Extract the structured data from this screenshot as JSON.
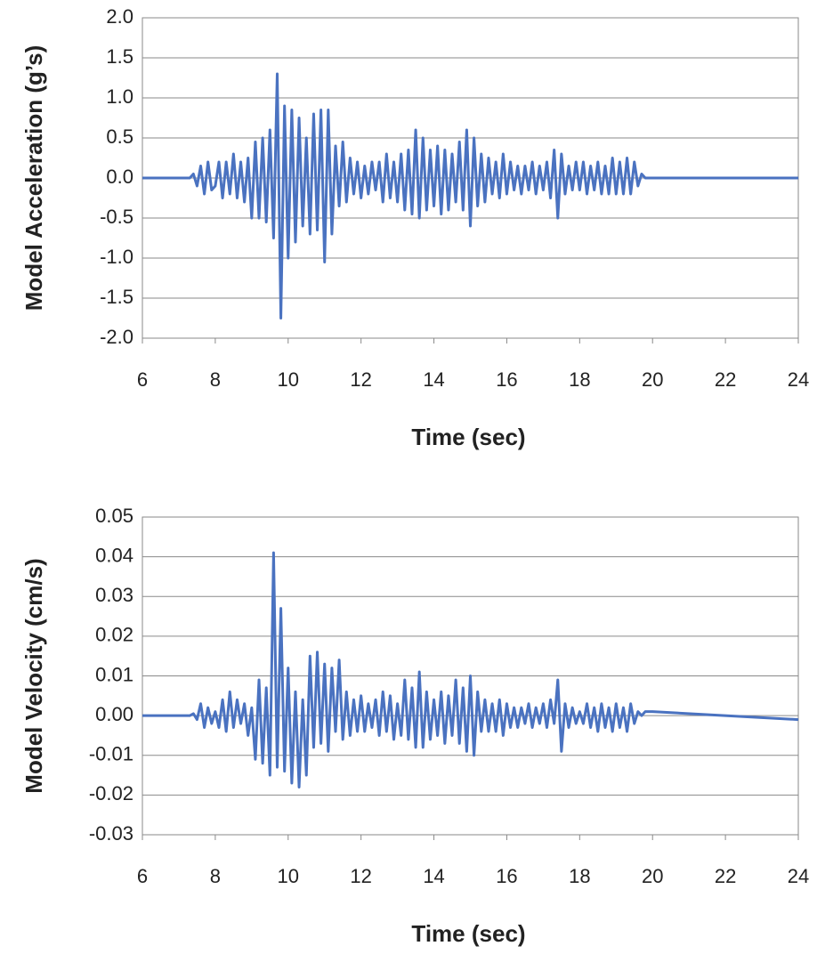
{
  "chart_data": [
    {
      "type": "line",
      "y_label": "Model Acceleration (g’s)",
      "x_label": "Time (sec)",
      "color": "#4a72c0",
      "grid": true,
      "xlim": [
        6,
        24
      ],
      "xticks": [
        6,
        8,
        10,
        12,
        14,
        16,
        18,
        20,
        22,
        24
      ],
      "ylim": [
        -2,
        2
      ],
      "yticks": [
        {
          "value": 2,
          "label": "2.0"
        },
        1.5,
        {
          "value": 1,
          "label": "1.0"
        },
        0.5,
        {
          "value": 0,
          "label": "0.0"
        },
        -0.5,
        {
          "value": -1,
          "label": "-1.0"
        },
        -1.5,
        {
          "value": -2,
          "label": "-2.0"
        }
      ],
      "x": [
        6,
        7,
        7.3,
        7.4,
        7.5,
        7.6,
        7.7,
        7.8,
        7.9,
        8,
        8.1,
        8.2,
        8.3,
        8.4,
        8.5,
        8.6,
        8.7,
        8.8,
        8.9,
        9,
        9.1,
        9.2,
        9.3,
        9.4,
        9.5,
        9.6,
        9.7,
        9.8,
        9.9,
        10,
        10.1,
        10.2,
        10.3,
        10.4,
        10.5,
        10.6,
        10.7,
        10.8,
        10.9,
        11,
        11.1,
        11.2,
        11.3,
        11.4,
        11.5,
        11.6,
        11.7,
        11.8,
        11.9,
        12,
        12.1,
        12.2,
        12.3,
        12.4,
        12.5,
        12.6,
        12.7,
        12.8,
        12.9,
        13,
        13.1,
        13.2,
        13.3,
        13.4,
        13.5,
        13.6,
        13.7,
        13.8,
        13.9,
        14,
        14.1,
        14.2,
        14.3,
        14.4,
        14.5,
        14.6,
        14.7,
        14.8,
        14.9,
        15,
        15.1,
        15.2,
        15.3,
        15.4,
        15.5,
        15.6,
        15.7,
        15.8,
        15.9,
        16,
        16.1,
        16.2,
        16.3,
        16.4,
        16.5,
        16.6,
        16.7,
        16.8,
        16.9,
        17,
        17.1,
        17.2,
        17.3,
        17.4,
        17.5,
        17.6,
        17.7,
        17.8,
        17.9,
        18,
        18.1,
        18.2,
        18.3,
        18.4,
        18.5,
        18.6,
        18.7,
        18.8,
        18.9,
        19,
        19.1,
        19.2,
        19.3,
        19.4,
        19.5,
        19.6,
        19.7,
        19.8,
        20,
        24
      ],
      "values": [
        0,
        0,
        0,
        0.05,
        -0.1,
        0.15,
        -0.2,
        0.2,
        -0.15,
        -0.1,
        0.2,
        -0.25,
        0.2,
        -0.2,
        0.3,
        -0.25,
        0.2,
        -0.3,
        0.25,
        -0.5,
        0.45,
        -0.5,
        0.5,
        -0.55,
        0.6,
        -0.75,
        1.3,
        -1.75,
        0.9,
        -1.0,
        0.85,
        -0.8,
        0.75,
        -0.6,
        0.5,
        -0.7,
        0.8,
        -0.65,
        0.85,
        -1.05,
        0.85,
        -0.7,
        0.4,
        -0.35,
        0.45,
        -0.3,
        0.25,
        -0.2,
        0.2,
        -0.25,
        0.15,
        -0.2,
        0.2,
        -0.15,
        0.2,
        -0.3,
        0.3,
        -0.25,
        0.2,
        -0.3,
        0.3,
        -0.4,
        0.35,
        -0.45,
        0.6,
        -0.5,
        0.5,
        -0.4,
        0.35,
        -0.35,
        0.4,
        -0.45,
        0.35,
        -0.4,
        0.3,
        -0.3,
        0.45,
        -0.4,
        0.6,
        -0.6,
        0.5,
        -0.35,
        0.3,
        -0.3,
        0.25,
        -0.2,
        0.2,
        -0.25,
        0.3,
        -0.2,
        0.2,
        -0.15,
        0.15,
        -0.2,
        0.15,
        -0.15,
        0.2,
        -0.2,
        0.15,
        -0.15,
        0.2,
        -0.25,
        0.35,
        -0.5,
        0.3,
        -0.2,
        0.15,
        -0.15,
        0.2,
        -0.15,
        0.2,
        -0.2,
        0.15,
        -0.15,
        0.2,
        -0.2,
        0.15,
        -0.2,
        0.25,
        -0.2,
        0.2,
        -0.2,
        0.25,
        -0.2,
        0.2,
        -0.1,
        0.05,
        0,
        0,
        0
      ]
    },
    {
      "type": "line",
      "y_label": "Model Velocity (cm/s)",
      "x_label": "Time (sec)",
      "color": "#4a72c0",
      "grid": true,
      "xlim": [
        6,
        24
      ],
      "xticks": [
        6,
        8,
        10,
        12,
        14,
        16,
        18,
        20,
        22,
        24
      ],
      "ylim": [
        -0.03,
        0.05
      ],
      "yticks": [
        0.05,
        0.04,
        0.03,
        0.02,
        0.01,
        {
          "value": 0,
          "label": "0.00"
        },
        -0.01,
        -0.02,
        -0.03
      ],
      "x": [
        6,
        7,
        7.3,
        7.4,
        7.5,
        7.6,
        7.7,
        7.8,
        7.9,
        8,
        8.1,
        8.2,
        8.3,
        8.4,
        8.5,
        8.6,
        8.7,
        8.8,
        8.9,
        9,
        9.1,
        9.2,
        9.3,
        9.4,
        9.5,
        9.6,
        9.7,
        9.8,
        9.9,
        10,
        10.1,
        10.2,
        10.3,
        10.4,
        10.5,
        10.6,
        10.7,
        10.8,
        10.9,
        11,
        11.1,
        11.2,
        11.3,
        11.4,
        11.5,
        11.6,
        11.7,
        11.8,
        11.9,
        12,
        12.1,
        12.2,
        12.3,
        12.4,
        12.5,
        12.6,
        12.7,
        12.8,
        12.9,
        13,
        13.1,
        13.2,
        13.3,
        13.4,
        13.5,
        13.6,
        13.7,
        13.8,
        13.9,
        14,
        14.1,
        14.2,
        14.3,
        14.4,
        14.5,
        14.6,
        14.7,
        14.8,
        14.9,
        15,
        15.1,
        15.2,
        15.3,
        15.4,
        15.5,
        15.6,
        15.7,
        15.8,
        15.9,
        16,
        16.1,
        16.2,
        16.3,
        16.4,
        16.5,
        16.6,
        16.7,
        16.8,
        16.9,
        17,
        17.1,
        17.2,
        17.3,
        17.4,
        17.5,
        17.6,
        17.7,
        17.8,
        17.9,
        18,
        18.1,
        18.2,
        18.3,
        18.4,
        18.5,
        18.6,
        18.7,
        18.8,
        18.9,
        19,
        19.1,
        19.2,
        19.3,
        19.4,
        19.5,
        19.6,
        19.7,
        19.8,
        20,
        24
      ],
      "values": [
        0,
        0,
        0,
        0.0005,
        -0.001,
        0.003,
        -0.003,
        0.002,
        -0.002,
        0.001,
        -0.003,
        0.004,
        -0.004,
        0.006,
        -0.003,
        0.004,
        -0.002,
        0.003,
        -0.005,
        0.002,
        -0.011,
        0.009,
        -0.012,
        0.007,
        -0.015,
        0.041,
        -0.013,
        0.027,
        -0.014,
        0.012,
        -0.017,
        0.006,
        -0.018,
        0.004,
        -0.015,
        0.015,
        -0.008,
        0.016,
        -0.007,
        0.013,
        -0.009,
        0.012,
        -0.004,
        0.014,
        -0.006,
        0.006,
        -0.005,
        0.004,
        -0.004,
        0.005,
        -0.004,
        0.003,
        -0.003,
        0.004,
        -0.005,
        0.006,
        -0.004,
        0.005,
        -0.006,
        0.003,
        -0.005,
        0.009,
        -0.006,
        0.007,
        -0.008,
        0.011,
        -0.008,
        0.006,
        -0.006,
        0.004,
        -0.005,
        0.006,
        -0.007,
        0.005,
        -0.005,
        0.009,
        -0.007,
        0.007,
        -0.009,
        0.01,
        -0.01,
        0.006,
        -0.004,
        0.004,
        -0.004,
        0.003,
        -0.004,
        0.004,
        -0.005,
        0.003,
        -0.003,
        0.002,
        -0.003,
        0.002,
        -0.002,
        0.003,
        -0.003,
        0.002,
        -0.002,
        0.003,
        -0.003,
        0.004,
        -0.002,
        0.009,
        -0.009,
        0.003,
        -0.003,
        0.002,
        -0.002,
        0.001,
        -0.002,
        0.003,
        -0.003,
        0.002,
        -0.004,
        0.003,
        -0.003,
        0.002,
        -0.004,
        0.003,
        -0.003,
        0.002,
        -0.004,
        0.003,
        -0.002,
        0.001,
        0,
        0.001,
        0.001,
        -0.001
      ]
    }
  ]
}
